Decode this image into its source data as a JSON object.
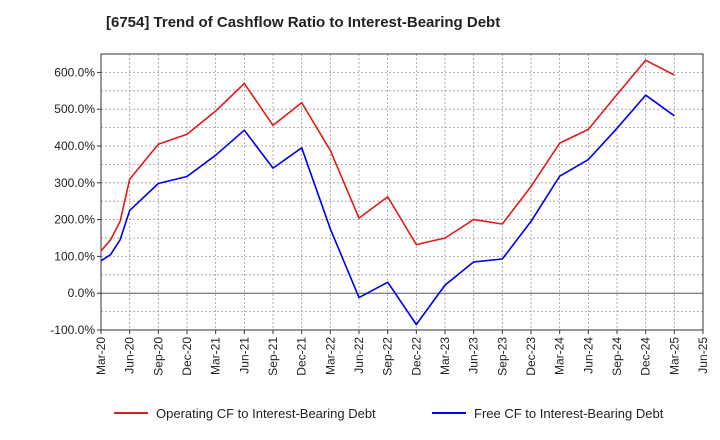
{
  "chart_data": {
    "type": "line",
    "title": "[6754]  Trend of Cashflow Ratio to Interest-Bearing Debt",
    "xlabel": "",
    "ylabel": "",
    "ylim": [
      -100,
      650
    ],
    "y_ticks": [
      -100,
      0,
      100,
      200,
      300,
      400,
      500,
      600
    ],
    "y_tick_labels": [
      "-100.0%",
      "0.0%",
      "100.0%",
      "200.0%",
      "300.0%",
      "400.0%",
      "500.0%",
      "600.0%"
    ],
    "x_tick_labels": [
      "Mar-20",
      "Jun-20",
      "Sep-20",
      "Dec-20",
      "Mar-21",
      "Jun-21",
      "Sep-21",
      "Dec-21",
      "Mar-22",
      "Jun-22",
      "Sep-22",
      "Dec-22",
      "Mar-23",
      "Jun-23",
      "Sep-23",
      "Dec-23",
      "Mar-24",
      "Jun-24",
      "Sep-24",
      "Dec-24",
      "Mar-25",
      "Jun-25"
    ],
    "grid": true,
    "legend_position": "bottom",
    "series": [
      {
        "name": "Operating CF to Interest-Bearing Debt",
        "color": "#e31a1c",
        "points": [
          [
            "Mar-20",
            115
          ],
          [
            "Apr-20",
            145
          ],
          [
            "May-20",
            195
          ],
          [
            "Jun-20",
            310
          ],
          [
            "Sep-20",
            405
          ],
          [
            "Dec-20",
            432
          ],
          [
            "Mar-21",
            495
          ],
          [
            "Jun-21",
            570
          ],
          [
            "Sep-21",
            456
          ],
          [
            "Dec-21",
            518
          ],
          [
            "Mar-22",
            388
          ],
          [
            "Jun-22",
            204
          ],
          [
            "Sep-22",
            262
          ],
          [
            "Dec-22",
            132
          ],
          [
            "Mar-23",
            150
          ],
          [
            "Jun-23",
            200
          ],
          [
            "Sep-23",
            188
          ],
          [
            "Dec-23",
            290
          ],
          [
            "Mar-24",
            408
          ],
          [
            "Jun-24",
            445
          ],
          [
            "Sep-24",
            540
          ],
          [
            "Dec-24",
            633
          ],
          [
            "Mar-25",
            593
          ]
        ]
      },
      {
        "name": "Free CF to Interest-Bearing Debt",
        "color": "#0000ee",
        "points": [
          [
            "Mar-20",
            88
          ],
          [
            "Apr-20",
            105
          ],
          [
            "May-20",
            145
          ],
          [
            "Jun-20",
            225
          ],
          [
            "Sep-20",
            298
          ],
          [
            "Dec-20",
            317
          ],
          [
            "Mar-21",
            375
          ],
          [
            "Jun-21",
            443
          ],
          [
            "Sep-21",
            340
          ],
          [
            "Dec-21",
            395
          ],
          [
            "Mar-22",
            175
          ],
          [
            "Jun-22",
            -12
          ],
          [
            "Sep-22",
            30
          ],
          [
            "Dec-22",
            -85
          ],
          [
            "Mar-23",
            22
          ],
          [
            "Jun-23",
            85
          ],
          [
            "Sep-23",
            93
          ],
          [
            "Dec-23",
            195
          ],
          [
            "Mar-24",
            318
          ],
          [
            "Jun-24",
            363
          ],
          [
            "Sep-24",
            448
          ],
          [
            "Dec-24",
            538
          ],
          [
            "Mar-25",
            482
          ]
        ]
      }
    ]
  }
}
